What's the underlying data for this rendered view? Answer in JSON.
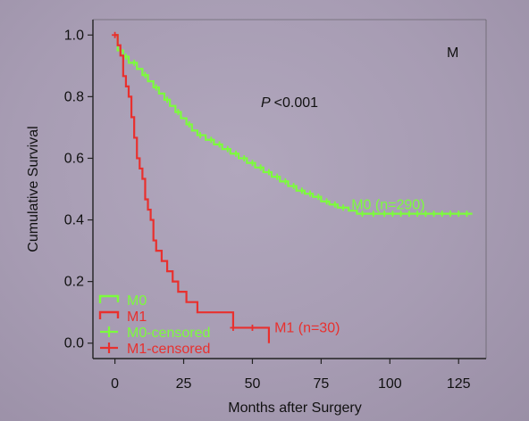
{
  "chart_data": {
    "type": "line",
    "subtype": "kaplan-meier",
    "panel_label": "M",
    "p_value_prefix": "P",
    "p_value_text": "<0.001",
    "xlabel": "Months after Surgery",
    "ylabel": "Cumulative Survival",
    "xlim": [
      -8,
      135
    ],
    "ylim": [
      -0.05,
      1.05
    ],
    "xticks": [
      0,
      25,
      50,
      75,
      100,
      125
    ],
    "yticks": [
      0.0,
      0.2,
      0.4,
      0.6,
      0.8,
      1.0
    ],
    "ytick_labels": [
      "0.0",
      "0.2",
      "0.4",
      "0.6",
      "0.8",
      "1.0"
    ],
    "grid": false,
    "legend_position": "bottom-left",
    "legend": [
      {
        "label": "M0",
        "color": "#7CFC3C",
        "marker": "step"
      },
      {
        "label": "M1",
        "color": "#E8302E",
        "marker": "step"
      },
      {
        "label": "M0-censored",
        "color": "#7CFC3C",
        "marker": "plus"
      },
      {
        "label": "M1-censored",
        "color": "#E8302E",
        "marker": "plus"
      }
    ],
    "series": [
      {
        "name": "M0 (n=290)",
        "color": "#7CFC3C",
        "annotation_at": [
          86,
          0.45
        ],
        "steps": [
          [
            0,
            1.0
          ],
          [
            1,
            0.95
          ],
          [
            3,
            0.93
          ],
          [
            5,
            0.91
          ],
          [
            8,
            0.89
          ],
          [
            10,
            0.87
          ],
          [
            12,
            0.85
          ],
          [
            14,
            0.83
          ],
          [
            16,
            0.81
          ],
          [
            18,
            0.79
          ],
          [
            20,
            0.77
          ],
          [
            22,
            0.75
          ],
          [
            24,
            0.73
          ],
          [
            26,
            0.71
          ],
          [
            28,
            0.69
          ],
          [
            30,
            0.675
          ],
          [
            33,
            0.66
          ],
          [
            36,
            0.645
          ],
          [
            39,
            0.63
          ],
          [
            42,
            0.615
          ],
          [
            45,
            0.6
          ],
          [
            48,
            0.585
          ],
          [
            51,
            0.57
          ],
          [
            54,
            0.555
          ],
          [
            57,
            0.54
          ],
          [
            60,
            0.525
          ],
          [
            63,
            0.51
          ],
          [
            66,
            0.495
          ],
          [
            69,
            0.485
          ],
          [
            72,
            0.475
          ],
          [
            75,
            0.46
          ],
          [
            78,
            0.45
          ],
          [
            81,
            0.44
          ],
          [
            85,
            0.43
          ],
          [
            88,
            0.42
          ],
          [
            130,
            0.42
          ]
        ],
        "censored_x": [
          4,
          7,
          11,
          15,
          19,
          23,
          27,
          31,
          35,
          38,
          41,
          44,
          47,
          50,
          53,
          56,
          59,
          62,
          65,
          68,
          71,
          74,
          77,
          80,
          83,
          90,
          94,
          98,
          101,
          104,
          107,
          110,
          113,
          116,
          119,
          122,
          125,
          128
        ]
      },
      {
        "name": "M1 (n=30)",
        "color": "#E8302E",
        "annotation_at": [
          58,
          0.05
        ],
        "steps": [
          [
            0,
            1.0
          ],
          [
            1,
            0.9667
          ],
          [
            2,
            0.9333
          ],
          [
            3,
            0.8667
          ],
          [
            4,
            0.8333
          ],
          [
            5,
            0.8
          ],
          [
            6,
            0.7333
          ],
          [
            7,
            0.6667
          ],
          [
            8,
            0.6
          ],
          [
            9,
            0.5667
          ],
          [
            10,
            0.5333
          ],
          [
            11,
            0.4667
          ],
          [
            12,
            0.4333
          ],
          [
            13,
            0.4
          ],
          [
            14,
            0.3333
          ],
          [
            15,
            0.3
          ],
          [
            17,
            0.2667
          ],
          [
            19,
            0.2333
          ],
          [
            21,
            0.2
          ],
          [
            23,
            0.1667
          ],
          [
            26,
            0.1333
          ],
          [
            30,
            0.1
          ],
          [
            34,
            0.1
          ],
          [
            38,
            0.1
          ],
          [
            43,
            0.05
          ],
          [
            52,
            0.05
          ],
          [
            56,
            0.0
          ]
        ],
        "censored_x": [
          0,
          43,
          50
        ]
      }
    ]
  }
}
